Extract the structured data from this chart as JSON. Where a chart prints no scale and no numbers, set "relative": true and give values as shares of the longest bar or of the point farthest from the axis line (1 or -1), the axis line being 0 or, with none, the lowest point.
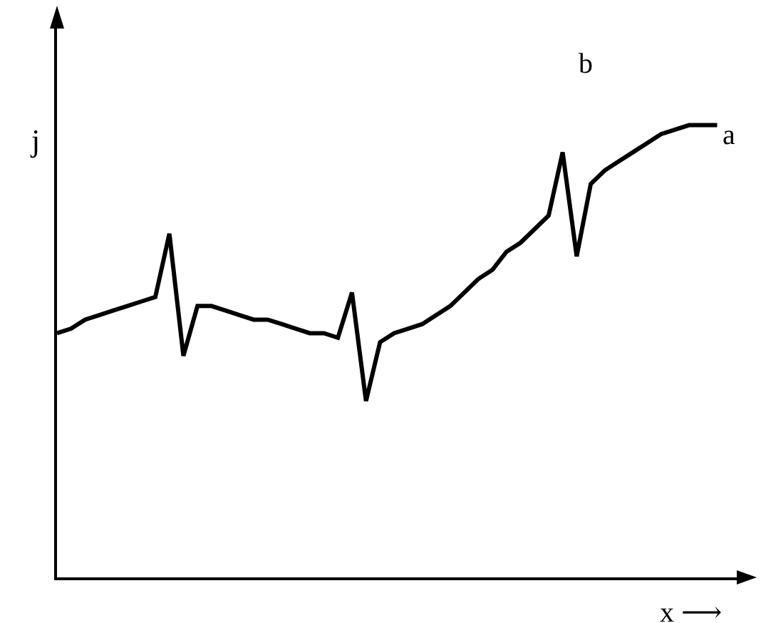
{
  "chart_data": {
    "type": "line",
    "relative": true,
    "xlabel": "x ⟶",
    "ylabel": "j",
    "annotations": [
      "a",
      "b"
    ],
    "marker": "none",
    "line_style": "solid",
    "grid": false,
    "legend": false,
    "categories": [
      null,
      null,
      null,
      null,
      null,
      null,
      null,
      null,
      null,
      null,
      null,
      null,
      null,
      null,
      null,
      null,
      null,
      null,
      null,
      null,
      null,
      null,
      null,
      null,
      null,
      null,
      null,
      null,
      null,
      null,
      null,
      null,
      null,
      null,
      null,
      null,
      null,
      null,
      null,
      null,
      null,
      null,
      null,
      null,
      null,
      null,
      null,
      null
    ],
    "series": [
      {
        "color": "#000000",
        "values": [
          0.54,
          0.55,
          0.57,
          0.58,
          0.59,
          0.6,
          0.61,
          0.62,
          0.76,
          0.49,
          0.6,
          0.6,
          0.59,
          0.58,
          0.57,
          0.57,
          0.56,
          0.55,
          0.54,
          0.54,
          0.53,
          0.63,
          0.39,
          0.52,
          0.54,
          0.55,
          0.56,
          0.58,
          0.6,
          0.63,
          0.66,
          0.68,
          0.72,
          0.74,
          0.77,
          0.8,
          0.94,
          0.71,
          0.87,
          0.9,
          0.92,
          0.94,
          0.96,
          0.98,
          0.99,
          1.0,
          1,
          1
        ]
      }
    ]
  }
}
